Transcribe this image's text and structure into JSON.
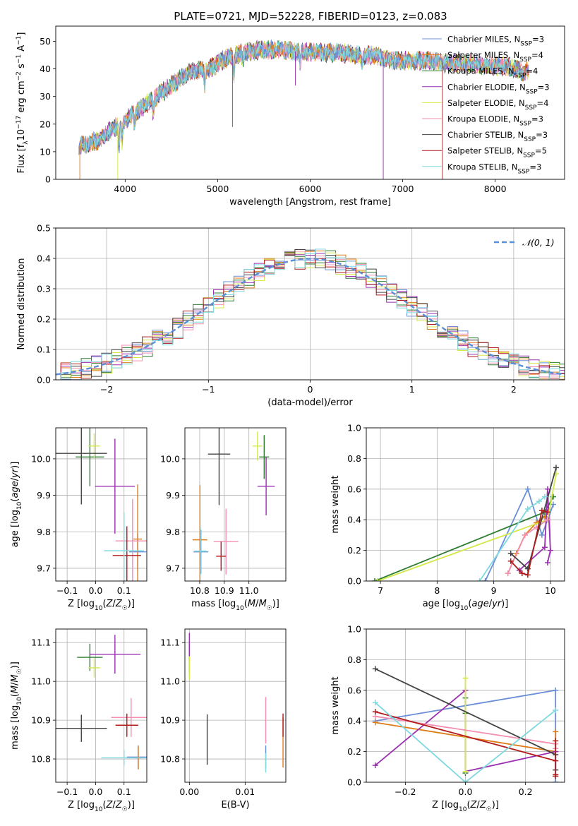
{
  "figure_title": "PLATE=0721, MJD=52228, FIBERID=0123, z=0.083",
  "series_colors": [
    "#6a8fd8",
    "#e07b1a",
    "#2e7d32",
    "#9b30b0",
    "#d4e84a",
    "#f48fb1",
    "#444444",
    "#b11b1b",
    "#7fd9e0"
  ],
  "chart_data": [
    {
      "id": "spectrum",
      "type": "line",
      "xlabel": "wavelength [Angstrom, rest frame]",
      "ylabel": "Flux [f_λ10^-17 erg cm^-2 s^-1 A^-1]",
      "xlim": [
        3250,
        8750
      ],
      "ylim": [
        0,
        55.5
      ],
      "xticks": [
        4000,
        5000,
        6000,
        7000,
        8000
      ],
      "yticks": [
        0,
        10,
        20,
        30,
        40,
        50
      ],
      "grid": false,
      "legend": "top-right",
      "legend_entries": [
        "Chabrier MILES, N_SSP=3",
        "Salpeter MILES, N_SSP=4",
        "Kroupa MILES, N_SSP=4",
        "Chabrier ELODIE, N_SSP=3",
        "Salpeter ELODIE, N_SSP=4",
        "Kroupa ELODIE, N_SSP=3",
        "Chabrier STELIB, N_SSP=3",
        "Salpeter STELIB, N_SSP=5",
        "Kroupa STELIB, N_SSP=3"
      ],
      "continuum": {
        "x": [
          3500,
          3700,
          3900,
          4100,
          4300,
          4500,
          4700,
          4900,
          5100,
          5300,
          5500,
          5700,
          5900,
          6100,
          6300,
          6500,
          6700,
          6900,
          7100,
          7300,
          7500,
          7700,
          7900,
          8100,
          8300
        ],
        "y": [
          12,
          14,
          19,
          24,
          29,
          34,
          39,
          40,
          44,
          46,
          47,
          47,
          46,
          46,
          46,
          45,
          45,
          43,
          43,
          43,
          42,
          42,
          41,
          41,
          39
        ]
      }
    },
    {
      "id": "residuals",
      "type": "area",
      "xlabel": "(data-model)/error",
      "ylabel": "Normed distribution",
      "xlim": [
        -2.5,
        2.5
      ],
      "ylim": [
        0,
        0.5
      ],
      "xticks": [
        -2,
        -1,
        0,
        1,
        2
      ],
      "yticks": [
        0.0,
        0.1,
        0.2,
        0.3,
        0.4,
        0.5
      ],
      "grid": true,
      "legend": "top-right",
      "legend_entries": [
        "N(0,1)"
      ]
    },
    {
      "id": "z_age",
      "type": "scatter",
      "xlabel": "Z [log10(Z/Z☉)]",
      "ylabel": "age  [log10(age/yr)]",
      "xlim": [
        -0.14,
        0.18
      ],
      "ylim": [
        9.665,
        10.085
      ],
      "xticks": [
        -0.1,
        0.0,
        0.1
      ],
      "yticks": [
        9.7,
        9.8,
        9.9,
        10.0
      ],
      "grid": true,
      "points": [
        {
          "x": 0.148,
          "y": 9.745,
          "xerr": 0.03,
          "yerr": 0.05,
          "c": 0
        },
        {
          "x": 0.148,
          "y": 9.78,
          "xerr": 0.015,
          "yerr": 0.15,
          "c": 1
        },
        {
          "x": -0.02,
          "y": 10.005,
          "xerr": 0.05,
          "yerr": 0.08,
          "c": 2
        },
        {
          "x": 0.068,
          "y": 9.925,
          "xerr": 0.07,
          "yerr": 0.13,
          "c": 3
        },
        {
          "x": -0.005,
          "y": 10.035,
          "xerr": 0.02,
          "yerr": 0.035,
          "c": 4
        },
        {
          "x": 0.13,
          "y": 9.775,
          "xerr": 0.06,
          "yerr": 0.115,
          "c": 5
        },
        {
          "x": -0.05,
          "y": 10.015,
          "xerr": 0.09,
          "yerr": 0.14,
          "c": 6
        },
        {
          "x": 0.11,
          "y": 9.735,
          "xerr": 0.05,
          "yerr": 0.08,
          "c": 7
        },
        {
          "x": 0.1,
          "y": 9.748,
          "xerr": 0.07,
          "yerr": 0.105,
          "c": 8
        }
      ]
    },
    {
      "id": "mass_age",
      "type": "scatter",
      "xlabel": "mass [log10(M/M☉)]",
      "ylabel": "",
      "xlim": [
        10.74,
        11.15
      ],
      "ylim": [
        9.665,
        10.085
      ],
      "xticks": [
        10.8,
        10.9,
        11.0
      ],
      "yticks": [
        9.7,
        9.8,
        9.9,
        10.0
      ],
      "grid": true,
      "points": [
        {
          "x": 10.805,
          "y": 9.745,
          "xerr": 0.03,
          "yerr": 0.06,
          "c": 0
        },
        {
          "x": 10.801,
          "y": 9.778,
          "xerr": 0.03,
          "yerr": 0.15,
          "c": 1
        },
        {
          "x": 11.062,
          "y": 10.005,
          "xerr": 0.02,
          "yerr": 0.06,
          "c": 2
        },
        {
          "x": 11.07,
          "y": 9.925,
          "xerr": 0.035,
          "yerr": 0.08,
          "c": 3
        },
        {
          "x": 11.035,
          "y": 10.035,
          "xerr": 0.02,
          "yerr": 0.04,
          "c": 4
        },
        {
          "x": 10.907,
          "y": 9.773,
          "xerr": 0.05,
          "yerr": 0.09,
          "c": 5
        },
        {
          "x": 10.879,
          "y": 10.013,
          "xerr": 0.045,
          "yerr": 0.14,
          "c": 6
        },
        {
          "x": 10.887,
          "y": 9.733,
          "xerr": 0.02,
          "yerr": 0.04,
          "c": 7
        },
        {
          "x": 10.803,
          "y": 9.747,
          "xerr": 0.025,
          "yerr": 0.065,
          "c": 8
        }
      ]
    },
    {
      "id": "age_weight",
      "type": "line",
      "xlabel": "age  [log10(age/yr)]",
      "ylabel": "mass weight",
      "xlim": [
        6.75,
        10.25
      ],
      "ylim": [
        0,
        1.0
      ],
      "xticks": [
        7,
        8,
        9,
        10
      ],
      "yticks": [
        0.0,
        0.2,
        0.4,
        0.6,
        0.8,
        1.0
      ],
      "grid": true,
      "series": [
        {
          "c": 0,
          "x": [
            8.85,
            9.6,
            9.85,
            10.05
          ],
          "y": [
            0.0,
            0.6,
            0.3,
            0.5
          ]
        },
        {
          "c": 1,
          "x": [
            9.25,
            9.4,
            9.55,
            9.75,
            9.9
          ],
          "y": [
            0.05,
            0.18,
            0.3,
            0.38,
            0.42
          ]
        },
        {
          "c": 2,
          "x": [
            6.9,
            9.9,
            10.05
          ],
          "y": [
            0.0,
            0.45,
            0.55
          ]
        },
        {
          "c": 3,
          "x": [
            9.45,
            9.9,
            9.95,
            10.0,
            9.95
          ],
          "y": [
            0.07,
            0.22,
            0.6,
            0.2,
            0.12
          ]
        },
        {
          "c": 4,
          "x": [
            6.95,
            9.95,
            10.1
          ],
          "y": [
            0.0,
            0.4,
            0.7
          ]
        },
        {
          "c": 5,
          "x": [
            9.25,
            9.55,
            9.75,
            9.95
          ],
          "y": [
            0.05,
            0.3,
            0.35,
            0.4
          ]
        },
        {
          "c": 6,
          "x": [
            9.3,
            9.6,
            10.1
          ],
          "y": [
            0.18,
            0.08,
            0.74
          ]
        },
        {
          "c": 7,
          "x": [
            9.3,
            9.5,
            9.6,
            9.85,
            9.95
          ],
          "y": [
            0.13,
            0.05,
            0.04,
            0.46,
            0.45
          ]
        },
        {
          "c": 8,
          "x": [
            8.75,
            9.6,
            9.8,
            9.9
          ],
          "y": [
            0.0,
            0.47,
            0.52,
            0.55
          ]
        }
      ]
    },
    {
      "id": "z_mass",
      "type": "scatter",
      "xlabel": "Z [log10(Z/Z☉)]",
      "ylabel": "mass [log10(M/M☉)]",
      "xlim": [
        -0.14,
        0.18
      ],
      "ylim": [
        10.74,
        11.135
      ],
      "xticks": [
        -0.1,
        0.0,
        0.1
      ],
      "yticks": [
        10.8,
        10.9,
        11.0,
        11.1
      ],
      "grid": true,
      "points": [
        {
          "x": 0.15,
          "y": 10.805,
          "xerr": 0.04,
          "yerr": 0.03,
          "c": 0
        },
        {
          "x": 0.15,
          "y": 10.803,
          "xerr": 0.015,
          "yerr": 0.03,
          "c": 1
        },
        {
          "x": -0.02,
          "y": 11.062,
          "xerr": 0.045,
          "yerr": 0.035,
          "c": 2
        },
        {
          "x": 0.068,
          "y": 11.07,
          "xerr": 0.09,
          "yerr": 0.05,
          "c": 3
        },
        {
          "x": -0.005,
          "y": 11.035,
          "xerr": 0.02,
          "yerr": 0.025,
          "c": 4
        },
        {
          "x": 0.125,
          "y": 10.907,
          "xerr": 0.07,
          "yerr": 0.05,
          "c": 5
        },
        {
          "x": -0.05,
          "y": 10.879,
          "xerr": 0.09,
          "yerr": 0.035,
          "c": 6
        },
        {
          "x": 0.11,
          "y": 10.887,
          "xerr": 0.04,
          "yerr": 0.03,
          "c": 7
        },
        {
          "x": 0.1,
          "y": 10.803,
          "xerr": 0.08,
          "yerr": 0.02,
          "c": 8
        }
      ]
    },
    {
      "id": "ebv_mass",
      "type": "scatter",
      "xlabel": "E(B-V)",
      "ylabel": "",
      "xlim": [
        -0.0008,
        0.0173
      ],
      "ylim": [
        10.74,
        11.135
      ],
      "xticks": [
        0.0,
        0.01
      ],
      "yticks": [
        10.8,
        10.9,
        11.0,
        11.1
      ],
      "grid": true,
      "points": [
        {
          "x": 0.0137,
          "y": 10.805,
          "xerr": 0,
          "yerr": 0.03,
          "c": 0
        },
        {
          "x": 0.0168,
          "y": 10.843,
          "xerr": 0,
          "yerr": 0.065,
          "c": 1
        },
        {
          "x": 0.0,
          "y": 11.062,
          "xerr": 0,
          "yerr": 0.04,
          "c": 2
        },
        {
          "x": 0.0,
          "y": 11.09,
          "xerr": 0,
          "yerr": 0.035,
          "c": 3
        },
        {
          "x": 0.0,
          "y": 11.035,
          "xerr": 0,
          "yerr": 0.03,
          "c": 4
        },
        {
          "x": 0.0137,
          "y": 10.9,
          "xerr": 0,
          "yerr": 0.06,
          "c": 5
        },
        {
          "x": 0.0032,
          "y": 10.85,
          "xerr": 0,
          "yerr": 0.065,
          "c": 6
        },
        {
          "x": 0.0168,
          "y": 10.887,
          "xerr": 0,
          "yerr": 0.03,
          "c": 7
        },
        {
          "x": 0.0137,
          "y": 10.79,
          "xerr": 0,
          "yerr": 0.025,
          "c": 8
        }
      ]
    },
    {
      "id": "z_weight",
      "type": "line",
      "xlabel": "Z [log10(Z/Z☉)]",
      "ylabel": "mass weight",
      "xlim": [
        -0.33,
        0.33
      ],
      "ylim": [
        0,
        1.0
      ],
      "xticks": [
        -0.2,
        0.0,
        0.2
      ],
      "yticks": [
        0.0,
        0.2,
        0.4,
        0.6,
        0.8,
        1.0
      ],
      "grid": true,
      "series": [
        {
          "c": 0,
          "x": [
            -0.3,
            0.3,
            0.3
          ],
          "y": [
            0.4,
            0.6,
            0.0
          ]
        },
        {
          "c": 1,
          "x": [
            -0.3,
            0.3,
            0.3
          ],
          "y": [
            0.39,
            0.2,
            0.33
          ]
        },
        {
          "c": 2,
          "x": [
            0.0,
            0.0,
            0.0
          ],
          "y": [
            0.55,
            0.06,
            0.45
          ]
        },
        {
          "c": 3,
          "x": [
            -0.3,
            0.0,
            0.0,
            0.3
          ],
          "y": [
            0.11,
            0.6,
            0.07,
            0.2
          ]
        },
        {
          "c": 4,
          "x": [
            0.0,
            0.0,
            0.0
          ],
          "y": [
            0.68,
            0.07,
            0.3
          ]
        },
        {
          "c": 5,
          "x": [
            -0.3,
            0.3,
            0.3
          ],
          "y": [
            0.43,
            0.25,
            0.22
          ]
        },
        {
          "c": 6,
          "x": [
            -0.3,
            0.3,
            0.3
          ],
          "y": [
            0.74,
            0.18,
            0.08
          ]
        },
        {
          "c": 7,
          "x": [
            -0.3,
            0.3,
            0.3,
            0.3,
            0.3
          ],
          "y": [
            0.46,
            0.14,
            0.05,
            0.04,
            0.27
          ]
        },
        {
          "c": 8,
          "x": [
            -0.3,
            0.0,
            0.3
          ],
          "y": [
            0.52,
            0.0,
            0.47
          ]
        }
      ]
    }
  ]
}
